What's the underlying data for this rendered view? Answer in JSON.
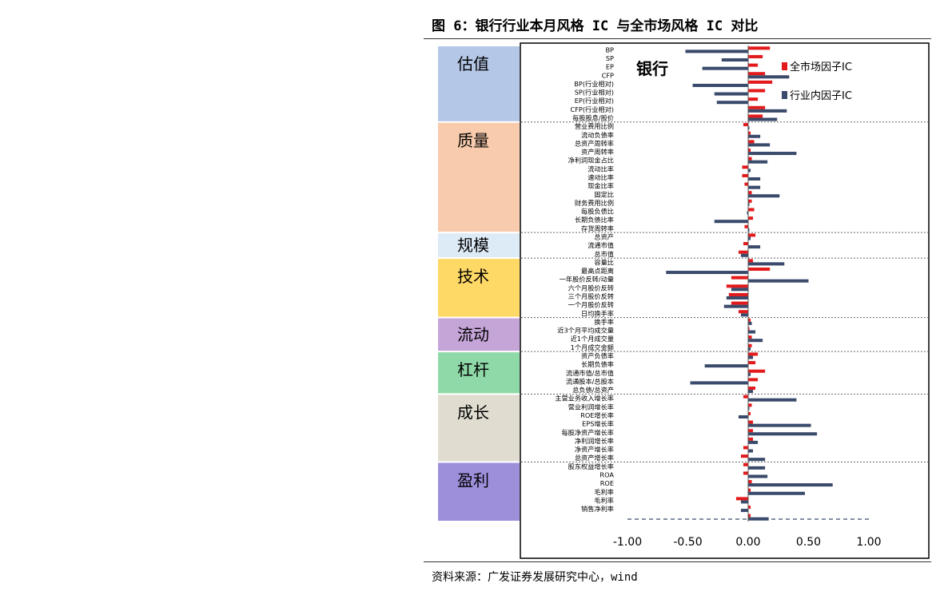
{
  "figure": {
    "title": "图 6：银行行业本月风格 IC 与全市场风格 IC 对比",
    "source": "资料来源：广发证券发展研究中心，wind"
  },
  "colors": {
    "market": "#e31a1c",
    "industry": "#3a4a6b",
    "估值": "#b4c7e7",
    "质量": "#f8cbad",
    "规模": "#ddebf7",
    "技术": "#ffd966",
    "流动": "#c5a5d8",
    "杠杆": "#8fd9a8",
    "成长": "#e0ddd0",
    "盈利": "#9e8fdb"
  },
  "chart_data": {
    "type": "bar",
    "orientation": "horizontal",
    "title": "银行",
    "xlim": [
      -1.0,
      1.0
    ],
    "xticks": [
      "-1.00",
      "-0.50",
      "0.00",
      "0.50",
      "1.00"
    ],
    "legend": {
      "placement": "top-right"
    },
    "series": [
      {
        "name": "全市场因子IC",
        "key": "market"
      },
      {
        "name": "行业内因子IC",
        "key": "industry"
      }
    ],
    "groups": [
      {
        "name": "估值",
        "items": [
          {
            "label": "BP",
            "market": 0.18,
            "industry": -0.52
          },
          {
            "label": "SP",
            "market": 0.12,
            "industry": -0.22
          },
          {
            "label": "EP",
            "market": 0.08,
            "industry": -0.38
          },
          {
            "label": "CFP",
            "market": 0.14,
            "industry": 0.34
          },
          {
            "label": "BP(行业相对)",
            "market": 0.2,
            "industry": -0.46
          },
          {
            "label": "SP(行业相对)",
            "market": 0.14,
            "industry": -0.28
          },
          {
            "label": "EP(行业相对)",
            "market": 0.08,
            "industry": -0.26
          },
          {
            "label": "CFP(行业相对)",
            "market": 0.14,
            "industry": 0.32
          },
          {
            "label": "每股股息/股价",
            "market": 0.12,
            "industry": 0.24
          }
        ]
      },
      {
        "name": "质量",
        "items": [
          {
            "label": "营业费用比例",
            "market": -0.04,
            "industry": 0.01
          },
          {
            "label": "流动负债率",
            "market": 0.02,
            "industry": 0.1
          },
          {
            "label": "总资产周转率",
            "market": 0.05,
            "industry": 0.18
          },
          {
            "label": "资产周转率",
            "market": 0.02,
            "industry": 0.4
          },
          {
            "label": "净利润现金占比",
            "market": 0.03,
            "industry": 0.16
          },
          {
            "label": "流动比率",
            "market": -0.05,
            "industry": 0.02
          },
          {
            "label": "速动比率",
            "market": -0.05,
            "industry": 0.1
          },
          {
            "label": "现金比率",
            "market": -0.03,
            "industry": 0.1
          },
          {
            "label": "固定比",
            "market": 0.03,
            "industry": 0.26
          },
          {
            "label": "财务费用比例",
            "market": 0.03,
            "industry": 0.01
          },
          {
            "label": "每股负债比",
            "market": 0.05,
            "industry": -0.01
          },
          {
            "label": "长期负债比率",
            "market": 0.04,
            "industry": -0.28
          },
          {
            "label": "存货周转率",
            "market": -0.03,
            "industry": 0.01
          }
        ]
      },
      {
        "name": "规模",
        "items": [
          {
            "label": "总资产",
            "market": 0.06,
            "industry": 0.02
          },
          {
            "label": "流通市值",
            "market": -0.04,
            "industry": 0.1
          },
          {
            "label": "总市值",
            "market": -0.08,
            "industry": -0.06
          }
        ]
      },
      {
        "name": "技术",
        "items": [
          {
            "label": "容量比",
            "market": 0.04,
            "industry": 0.3
          },
          {
            "label": "最高点距离",
            "market": 0.18,
            "industry": -0.68
          },
          {
            "label": "一年股价反转/动量",
            "market": -0.14,
            "industry": 0.5
          },
          {
            "label": "六个月股价反转",
            "market": -0.18,
            "industry": -0.14
          },
          {
            "label": "三个月股价反转",
            "market": -0.16,
            "industry": -0.18
          },
          {
            "label": "一个月股价反转",
            "market": -0.14,
            "industry": -0.2
          },
          {
            "label": "日均换手率",
            "market": -0.08,
            "industry": -0.06
          }
        ]
      },
      {
        "name": "流动",
        "items": [
          {
            "label": "换手率",
            "market": 0.02,
            "industry": 0.03
          },
          {
            "label": "近3个月平均成交量",
            "market": 0.01,
            "industry": 0.06
          },
          {
            "label": "近1个月成交量",
            "market": 0.03,
            "industry": 0.12
          },
          {
            "label": "1个月成交金额",
            "market": 0.03,
            "industry": 0.02
          }
        ]
      },
      {
        "name": "杠杆",
        "items": [
          {
            "label": "资产负债率",
            "market": 0.08,
            "industry": 0.04
          },
          {
            "label": "长期负债率",
            "market": 0.06,
            "industry": -0.36
          },
          {
            "label": "流通市值/总市值",
            "market": 0.14,
            "industry": 0.02
          },
          {
            "label": "流通股本/总股本",
            "market": 0.08,
            "industry": -0.48
          },
          {
            "label": "总负债/总资产",
            "market": 0.06,
            "industry": 0.04
          }
        ]
      },
      {
        "name": "成长",
        "items": [
          {
            "label": "主营业务收入增长率",
            "market": -0.04,
            "industry": 0.4
          },
          {
            "label": "营业利润增长率",
            "market": 0.03,
            "industry": 0.01
          },
          {
            "label": "ROE增长率",
            "market": 0.02,
            "industry": -0.08
          },
          {
            "label": "EPS增长率",
            "market": 0.04,
            "industry": 0.52
          },
          {
            "label": "每股净资产增长率",
            "market": 0.04,
            "industry": 0.57
          },
          {
            "label": "净利润增长率",
            "market": 0.04,
            "industry": 0.08
          },
          {
            "label": "净资产增长率",
            "market": -0.04,
            "industry": 0.04
          },
          {
            "label": "总资产增长率",
            "market": -0.06,
            "industry": 0.14
          }
        ]
      },
      {
        "name": "盈利",
        "items": [
          {
            "label": "股东权益增长率",
            "market": -0.04,
            "industry": 0.14
          },
          {
            "label": "ROA",
            "market": -0.04,
            "industry": 0.16
          },
          {
            "label": "ROE",
            "market": 0.03,
            "industry": 0.7
          },
          {
            "label": "毛利率",
            "market": 0.02,
            "industry": 0.47
          },
          {
            "label": "毛利率",
            "market": -0.1,
            "industry": -0.06
          },
          {
            "label": "销售净利率",
            "market": 0.02,
            "industry": -0.06
          },
          {
            "label": "",
            "market": 0.02,
            "industry": 0.17
          }
        ]
      }
    ]
  }
}
